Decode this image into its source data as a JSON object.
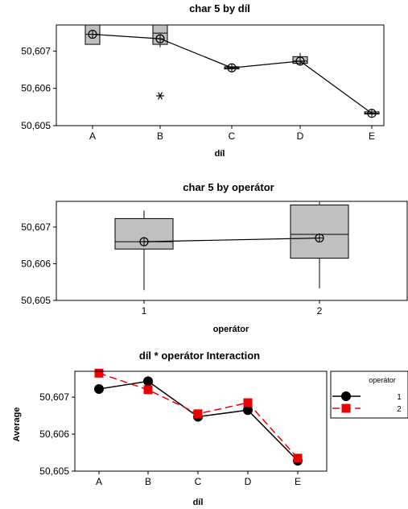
{
  "chart_data": [
    {
      "type": "box",
      "title": "char 5 by díl",
      "xlabel": "díl",
      "ylabel": "",
      "categories": [
        "A",
        "B",
        "C",
        "D",
        "E"
      ],
      "ylim": [
        50.605,
        50.6077
      ],
      "y_ticks": [
        "50,605",
        "50,606",
        "50,607"
      ],
      "y_tick_values": [
        50.605,
        50.606,
        50.607
      ],
      "boxes": [
        {
          "q1": 50.60718,
          "median": 50.60745,
          "q3": 50.6077,
          "whisker_low": 50.60718,
          "whisker_high": 50.6077,
          "mean": 50.60745
        },
        {
          "q1": 50.60718,
          "median": 50.60748,
          "q3": 50.6077,
          "whisker_low": 50.6071,
          "whisker_high": 50.6077,
          "mean": 50.60733
        },
        {
          "q1": 50.60652,
          "median": 50.60655,
          "q3": 50.60658,
          "whisker_low": 50.60652,
          "whisker_high": 50.60658,
          "mean": 50.60655
        },
        {
          "q1": 50.60667,
          "median": 50.60673,
          "q3": 50.60685,
          "whisker_low": 50.60667,
          "whisker_high": 50.60695,
          "mean": 50.60673
        },
        {
          "q1": 50.60531,
          "median": 50.60533,
          "q3": 50.60537,
          "whisker_low": 50.60531,
          "whisker_high": 50.60537,
          "mean": 50.60533
        }
      ],
      "outliers": [
        {
          "category": "B",
          "value": 50.6058
        }
      ]
    },
    {
      "type": "box",
      "title": "char 5 by operátor",
      "xlabel": "operátor",
      "ylabel": "",
      "categories": [
        "1",
        "2"
      ],
      "ylim": [
        50.605,
        50.6077
      ],
      "y_ticks": [
        "50,605",
        "50,606",
        "50,607"
      ],
      "y_tick_values": [
        50.605,
        50.606,
        50.607
      ],
      "boxes": [
        {
          "q1": 50.6064,
          "median": 50.6066,
          "q3": 50.60723,
          "whisker_low": 50.60528,
          "whisker_high": 50.60745,
          "mean": 50.6066
        },
        {
          "q1": 50.60615,
          "median": 50.6068,
          "q3": 50.6076,
          "whisker_low": 50.60533,
          "whisker_high": 50.60768,
          "mean": 50.6067
        }
      ],
      "outliers": []
    },
    {
      "type": "line",
      "title": "díl * operátor Interaction",
      "xlabel": "díl",
      "ylabel": "Average",
      "categories": [
        "A",
        "B",
        "C",
        "D",
        "E"
      ],
      "ylim": [
        50.605,
        50.6077
      ],
      "y_ticks": [
        "50,605",
        "50,606",
        "50,607"
      ],
      "y_tick_values": [
        50.605,
        50.606,
        50.607
      ],
      "legend_title": "operátor",
      "legend_position": "right",
      "series": [
        {
          "name": "1",
          "color": "#000000",
          "marker": "circle",
          "values": [
            50.60722,
            50.60743,
            50.60647,
            50.60665,
            50.60528
          ]
        },
        {
          "name": "2",
          "color": "#ee0000",
          "marker": "square",
          "values": [
            50.60765,
            50.6072,
            50.60655,
            50.60685,
            50.60535
          ]
        }
      ]
    }
  ]
}
